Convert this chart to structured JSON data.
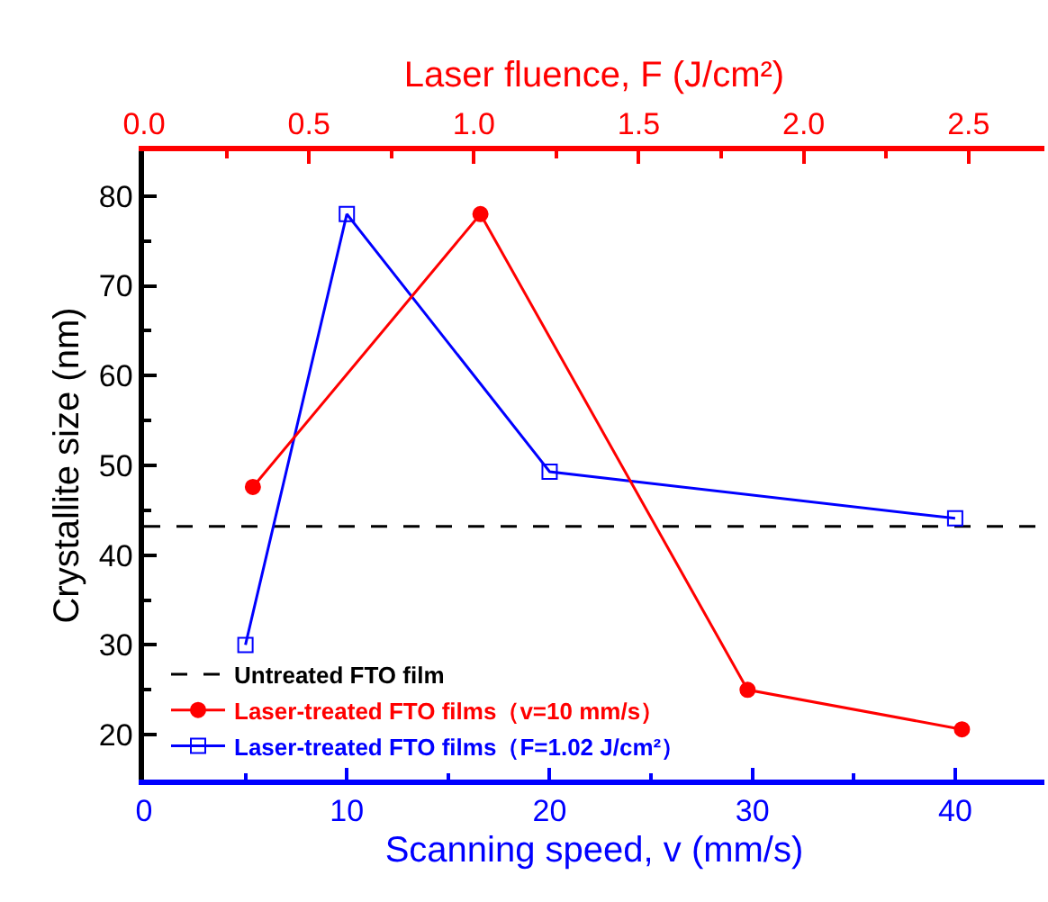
{
  "chart_data": {
    "type": "line",
    "xlabel": "Scanning speed, v (mm/s)",
    "x2label": "Laser fluence, F (J/cm²)",
    "ylabel": "Crystallite size (nm)",
    "xlim": [
      0,
      44.4
    ],
    "xticks": [
      0,
      10,
      20,
      30,
      40,
      {
        "value": 5,
        "label": null
      },
      {
        "value": 15,
        "label": null
      },
      {
        "value": 25,
        "label": null
      },
      {
        "value": 35,
        "label": null
      }
    ],
    "x2lim": [
      0,
      2.73
    ],
    "x2ticks": [
      {
        "value": 0,
        "label": "0.0"
      },
      0.5,
      {
        "value": 1,
        "label": "1.0"
      },
      1.5,
      {
        "value": 2,
        "label": "2.0"
      },
      2.5,
      {
        "value": 0.25,
        "label": null
      },
      {
        "value": 0.75,
        "label": null
      },
      {
        "value": 1.25,
        "label": null
      },
      {
        "value": 1.75,
        "label": null
      },
      {
        "value": 2.25,
        "label": null
      }
    ],
    "ylim": [
      15,
      85
    ],
    "yticks": [
      20,
      30,
      40,
      50,
      60,
      70,
      80,
      {
        "value": 25,
        "label": null
      },
      {
        "value": 35,
        "label": null
      },
      {
        "value": 45,
        "label": null
      },
      {
        "value": 55,
        "label": null
      },
      {
        "value": 65,
        "label": null
      },
      {
        "value": 75,
        "label": null
      }
    ],
    "legend": "bottom left",
    "ref_lines": [
      {
        "axis": "y",
        "value": 43.2,
        "label": "Untreated FTO film",
        "color": "#000000",
        "line_style": "dashed"
      }
    ],
    "series": [
      {
        "name": "Laser-treated FTO films（v=10 mm/s）",
        "color": "#ff0000",
        "axis": "x2",
        "marker": "circle",
        "x": [
          0.33,
          1.02,
          1.83,
          2.48
        ],
        "values": [
          47.6,
          78,
          25.0,
          20.6
        ]
      },
      {
        "name": "Laser-treated FTO films（F=1.02 J/cm²）",
        "color": "#0000ff",
        "marker": "square",
        "x": [
          5,
          10,
          20,
          40
        ],
        "values": [
          30.0,
          78,
          49.3,
          44.1
        ]
      }
    ]
  }
}
